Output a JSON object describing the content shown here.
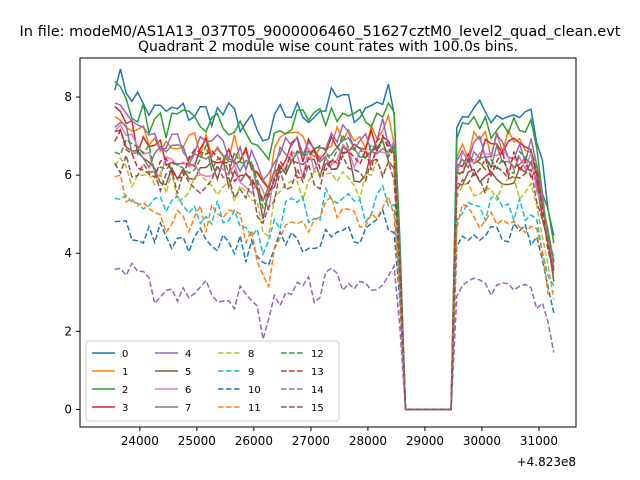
{
  "figure": {
    "suptitle": "In file: modeM0/AS1A13_037T05_9000006460_51627cztM0_level2_quad_clean.evt",
    "title": "Quadrant 2 module wise count rates with 100.0s bins.",
    "offset_text": "+4.823e8"
  },
  "chart_data": {
    "type": "line",
    "title": "Quadrant 2 module wise count rates with 100.0s bins.",
    "xlabel": "",
    "ylabel": "",
    "x_offset": 482300000,
    "xlim": [
      22950,
      31650
    ],
    "ylim": [
      -0.45,
      9.0
    ],
    "xticks": [
      24000,
      25000,
      26000,
      27000,
      28000,
      29000,
      30000,
      31000
    ],
    "xtick_labels": [
      "24000",
      "25000",
      "26000",
      "27000",
      "28000",
      "29000",
      "30000",
      "31000"
    ],
    "yticks": [
      0,
      2,
      4,
      6,
      8
    ],
    "ytick_labels": [
      "0",
      "2",
      "4",
      "6",
      "8"
    ],
    "grid": false,
    "legend": {
      "placement": "lower-left",
      "columns": 4
    },
    "x_start": 23560,
    "x_step": 100,
    "gap": {
      "from": 28660,
      "to": 29460,
      "value": 0
    },
    "series": [
      {
        "name": "0",
        "color": "#1f77b4",
        "dash": "solid",
        "level": 7.6,
        "first": 8.55,
        "dip": 0.75
      },
      {
        "name": "1",
        "color": "#ff7f0e",
        "dash": "solid",
        "level": 6.8,
        "first": 7.4,
        "dip": 0.9
      },
      {
        "name": "2",
        "color": "#2ca02c",
        "dash": "solid",
        "level": 7.3,
        "first": 8.25,
        "dip": 0.8
      },
      {
        "name": "3",
        "color": "#d62728",
        "dash": "solid",
        "level": 6.6,
        "first": 7.45,
        "dip": 0.9
      },
      {
        "name": "4",
        "color": "#9467bd",
        "dash": "solid",
        "level": 6.7,
        "first": 7.8,
        "dip": 0.85
      },
      {
        "name": "5",
        "color": "#8c564b",
        "dash": "solid",
        "level": 6.1,
        "first": 6.95,
        "dip": 0.85
      },
      {
        "name": "6",
        "color": "#e377c2",
        "dash": "solid",
        "level": 6.3,
        "first": 7.05,
        "dip": 0.9
      },
      {
        "name": "7",
        "color": "#7f7f7f",
        "dash": "solid",
        "level": 6.5,
        "first": 7.25,
        "dip": 0.9
      },
      {
        "name": "8",
        "color": "#bcbd22",
        "dash": "dashed",
        "level": 5.7,
        "first": 6.25,
        "dip": 0.95
      },
      {
        "name": "9",
        "color": "#17becf",
        "dash": "dashed",
        "level": 5.1,
        "first": 5.5,
        "dip": 0.9
      },
      {
        "name": "10",
        "color": "#1f77b4",
        "dash": "dashed",
        "level": 4.4,
        "first": 4.85,
        "dip": 0.85
      },
      {
        "name": "11",
        "color": "#ff7f0e",
        "dash": "dashed",
        "level": 4.9,
        "first": 5.85,
        "dip": 1.55
      },
      {
        "name": "12",
        "color": "#2ca02c",
        "dash": "dashed",
        "level": 6.4,
        "first": 6.9,
        "dip": 0.9
      },
      {
        "name": "13",
        "color": "#d62728",
        "dash": "dashed",
        "level": 6.3,
        "first": 6.95,
        "dip": 0.9
      },
      {
        "name": "14",
        "color": "#9467bd",
        "dash": "dashed",
        "level": 3.05,
        "first": 3.7,
        "dip": 0.85
      },
      {
        "name": "15",
        "color": "#8c564b",
        "dash": "dashed",
        "level": 5.9,
        "first": 6.4,
        "dip": 0.85
      }
    ]
  }
}
